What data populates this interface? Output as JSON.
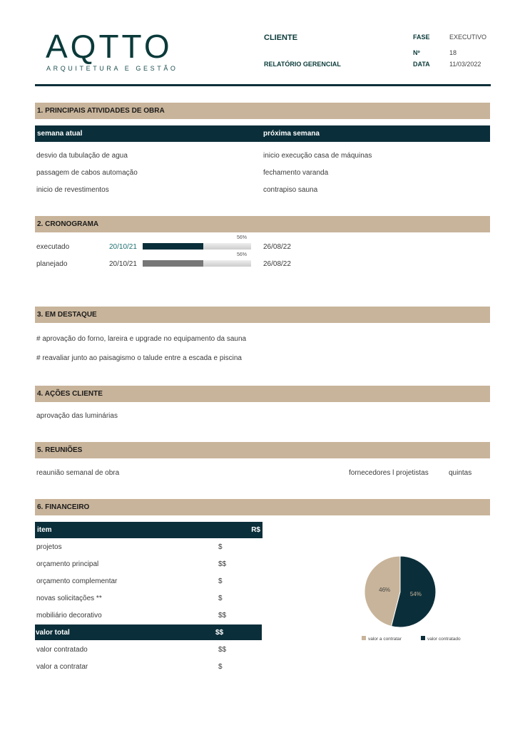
{
  "header": {
    "logo": "AQTTO",
    "logo_sub": "ARQUITETURA E GESTÃO",
    "cliente": "CLIENTE",
    "relatorio": "RELATÓRIO GERENCIAL",
    "fase_label": "FASE",
    "fase": "EXECUTIVO",
    "numero_label": "Nº",
    "numero": "18",
    "data_label": "DATA",
    "data": "11/03/2022"
  },
  "colors": {
    "dark": "#0b2f3a",
    "beige": "#c8b49a"
  },
  "s1": {
    "title": "1. PRINCIPAIS ATIVIDADES DE OBRA",
    "col1": "semana atual",
    "col2": "próxima semana",
    "atual": [
      "desvio da tubulação de agua",
      "passagem de cabos automação",
      "inicio de revestimentos"
    ],
    "proxima": [
      "inicio execução casa de máquinas",
      "fechamento varanda",
      "contrapiso sauna"
    ]
  },
  "s2": {
    "title": "2. CRONOGRAMA",
    "rows": [
      {
        "label": "executado",
        "start": "20/10/21",
        "end": "26/08/22",
        "pct_label": "56%",
        "pct": 56
      },
      {
        "label": "planejado",
        "start": "20/10/21",
        "end": "26/08/22",
        "pct_label": "56%",
        "pct": 56
      }
    ]
  },
  "s3": {
    "title": "3. EM DESTAQUE",
    "items": [
      "# aprovação do forno, lareira e upgrade no equipamento da sauna",
      "# reavaliar junto ao paisagismo o talude entre a escada e piscina"
    ]
  },
  "s4": {
    "title": "4. AÇÕES CLIENTE",
    "items": [
      "aprovação das luminárias"
    ]
  },
  "s5": {
    "title": "5. REUNIÕES",
    "meeting": "reaunião semanal de obra",
    "who": "fornecedores l projetistas",
    "when": "quintas"
  },
  "s6": {
    "title": "6. FINANCEIRO",
    "col1": "item",
    "col2": "R$",
    "rows": [
      {
        "item": "projetos",
        "v": "$"
      },
      {
        "item": "orçamento principal",
        "v": "$$"
      },
      {
        "item": "orçamento complementar",
        "v": "$"
      },
      {
        "item": "novas solicitações **",
        "v": "$"
      },
      {
        "item": "mobiliário decorativo",
        "v": "$$"
      }
    ],
    "total": {
      "item": "valor total",
      "v": "$$"
    },
    "after": [
      {
        "item": "valor contratado",
        "v": "$$"
      },
      {
        "item": "valor a contratar",
        "v": "$"
      }
    ]
  },
  "chart_data": {
    "type": "pie",
    "slices": [
      {
        "name": "valor contratado",
        "value": 54,
        "label": "54%",
        "color": "#0b2f3a"
      },
      {
        "name": "valor a contratar",
        "value": 46,
        "label": "46%",
        "color": "#c8b49a"
      }
    ]
  }
}
